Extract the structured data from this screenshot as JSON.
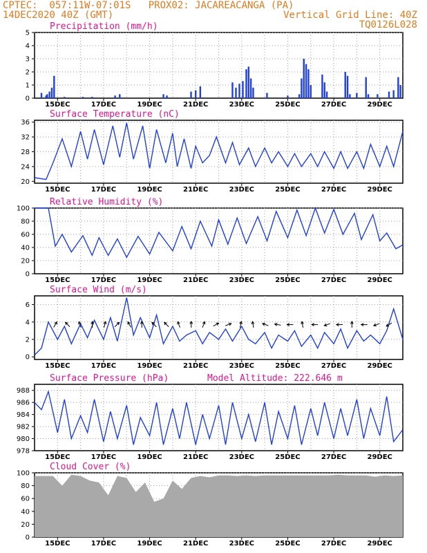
{
  "header": {
    "left1": "CPTEC:  057:11W-07:01S   PROX02: JACAREACANGA (PA)",
    "left2": "14DEC2020 40Z (GMT)",
    "right2": "Vertical Grid Line: 40Z",
    "right3": "TQ0126L028"
  },
  "colors": {
    "line": "#1f3fe0",
    "bar": "#1f3fe0",
    "cloud": "#a9a9a9",
    "title": "#e0148c",
    "header": "#e07a1f"
  },
  "x_labels": [
    "15DEC",
    "17DEC",
    "19DEC",
    "21DEC",
    "23DEC",
    "25DEC",
    "27DEC",
    "29DEC"
  ],
  "chart_data": [
    {
      "type": "bar",
      "title": "Precipitation (mm/h)",
      "ylim": [
        0,
        5
      ],
      "yticks": [
        0,
        1,
        2,
        3,
        4,
        5
      ],
      "bars": [
        [
          0.3,
          0.4
        ],
        [
          0.5,
          0.2
        ],
        [
          0.55,
          0.3
        ],
        [
          0.65,
          0.5
        ],
        [
          0.75,
          0.8
        ],
        [
          0.85,
          1.7
        ],
        [
          1.3,
          0.1
        ],
        [
          2.1,
          0.1
        ],
        [
          2.5,
          0.1
        ],
        [
          3.5,
          0.2
        ],
        [
          3.7,
          0.3
        ],
        [
          5.6,
          0.3
        ],
        [
          5.75,
          0.2
        ],
        [
          6.8,
          0.5
        ],
        [
          7.0,
          0.6
        ],
        [
          7.2,
          0.9
        ],
        [
          8.6,
          1.2
        ],
        [
          8.75,
          0.8
        ],
        [
          8.9,
          1.1
        ],
        [
          9.05,
          1.3
        ],
        [
          9.2,
          2.2
        ],
        [
          9.3,
          2.4
        ],
        [
          9.4,
          1.5
        ],
        [
          9.5,
          0.8
        ],
        [
          10.1,
          0.4
        ],
        [
          11.0,
          0.2
        ],
        [
          11.5,
          0.3
        ],
        [
          11.6,
          1.5
        ],
        [
          11.7,
          3.0
        ],
        [
          11.8,
          2.6
        ],
        [
          11.9,
          2.2
        ],
        [
          12.0,
          1.0
        ],
        [
          12.5,
          1.8
        ],
        [
          12.6,
          1.2
        ],
        [
          12.7,
          0.5
        ],
        [
          13.5,
          2.0
        ],
        [
          13.6,
          1.7
        ],
        [
          13.7,
          0.3
        ],
        [
          14.0,
          0.4
        ],
        [
          14.4,
          1.6
        ],
        [
          14.5,
          0.3
        ],
        [
          14.9,
          0.3
        ],
        [
          15.4,
          0.5
        ],
        [
          15.6,
          0.6
        ],
        [
          15.8,
          1.6
        ],
        [
          15.9,
          1.0
        ]
      ]
    },
    {
      "type": "line",
      "title": "Surface Temperature (nC)",
      "ylim": [
        19.5,
        36.5
      ],
      "yticks": [
        20,
        24,
        28,
        32,
        36
      ],
      "x": [
        0,
        0.5,
        0.8,
        1.2,
        1.6,
        2.0,
        2.3,
        2.6,
        3.0,
        3.4,
        3.7,
        4.0,
        4.3,
        4.7,
        5.0,
        5.3,
        5.7,
        6.0,
        6.2,
        6.5,
        6.8,
        7.0,
        7.3,
        7.6,
        7.9,
        8.3,
        8.6,
        8.9,
        9.3,
        9.6,
        10.0,
        10.3,
        10.6,
        11.0,
        11.3,
        11.6,
        12.0,
        12.3,
        12.6,
        13.0,
        13.3,
        13.6,
        14.0,
        14.3,
        14.6,
        15.0,
        15.3,
        15.6,
        16.0
      ],
      "values": [
        21,
        20.5,
        25,
        31.5,
        24,
        33.5,
        26,
        34,
        24.5,
        35,
        26.5,
        35.8,
        26,
        35,
        23.5,
        34,
        25,
        33,
        24,
        31.5,
        23.5,
        29.5,
        25,
        27,
        32,
        25,
        30.5,
        24.5,
        29,
        24,
        29,
        25,
        28,
        24,
        27.5,
        24,
        27.5,
        24,
        28,
        23.5,
        28,
        23.5,
        28,
        23.5,
        30,
        24,
        29.5,
        24,
        33.5
      ]
    },
    {
      "type": "line",
      "title": "Relative Humidity (%)",
      "ylim": [
        0,
        100
      ],
      "yticks": [
        0,
        20,
        40,
        60,
        80,
        100
      ],
      "x": [
        0,
        0.6,
        0.9,
        1.2,
        1.6,
        2.1,
        2.5,
        2.8,
        3.2,
        3.6,
        4.0,
        4.5,
        5.0,
        5.4,
        6.0,
        6.4,
        6.8,
        7.2,
        7.7,
        8.0,
        8.4,
        8.8,
        9.2,
        9.7,
        10.1,
        10.5,
        11.0,
        11.4,
        11.8,
        12.2,
        12.6,
        13.0,
        13.4,
        13.9,
        14.2,
        14.7,
        15.0,
        15.3,
        15.7,
        16.0
      ],
      "values": [
        100,
        100,
        42,
        60,
        33,
        58,
        28,
        55,
        28,
        53,
        25,
        57,
        30,
        63,
        35,
        72,
        38,
        80,
        42,
        82,
        45,
        85,
        46,
        87,
        50,
        95,
        55,
        97,
        58,
        100,
        62,
        98,
        60,
        92,
        52,
        90,
        50,
        62,
        38,
        44
      ]
    },
    {
      "type": "line",
      "title": "Surface Wind (m/s)",
      "ylim": [
        -0.3,
        7
      ],
      "yticks": [
        0,
        2,
        4,
        6
      ],
      "x": [
        0,
        0.3,
        0.6,
        1.0,
        1.3,
        1.6,
        2.0,
        2.3,
        2.6,
        3.0,
        3.3,
        3.6,
        4.0,
        4.3,
        4.6,
        5.0,
        5.3,
        5.6,
        6.0,
        6.3,
        6.6,
        7.0,
        7.3,
        7.6,
        8.0,
        8.3,
        8.6,
        9.0,
        9.3,
        9.6,
        10.0,
        10.3,
        10.6,
        11.0,
        11.3,
        11.6,
        12.0,
        12.3,
        12.6,
        13.0,
        13.3,
        13.6,
        14.0,
        14.3,
        14.6,
        15.0,
        15.3,
        15.6,
        16.0
      ],
      "values": [
        0.2,
        1.0,
        4.0,
        2.0,
        3.5,
        1.5,
        3.8,
        2.2,
        4.2,
        2.0,
        4.5,
        1.8,
        6.8,
        2.5,
        4.5,
        2.2,
        4.8,
        1.5,
        3.5,
        1.8,
        2.5,
        3.0,
        1.5,
        2.8,
        2.0,
        3.2,
        1.8,
        3.5,
        2.0,
        1.5,
        2.8,
        1.0,
        2.5,
        1.8,
        3.0,
        1.2,
        2.5,
        1.0,
        2.8,
        1.5,
        3.2,
        1.0,
        3.0,
        1.8,
        2.5,
        1.5,
        3.0,
        5.5,
        2.0
      ],
      "arrows_deg": [
        60,
        135,
        110,
        90,
        75,
        45,
        120,
        90,
        135,
        135,
        110,
        90,
        70,
        30,
        20,
        80,
        100,
        160,
        170,
        180,
        100,
        180,
        200,
        180,
        90,
        180,
        200,
        210
      ]
    },
    {
      "type": "line",
      "title": "Surface Pressure (hPa)",
      "annotation": "Model Altitude: 222.646 m",
      "ylim": [
        978,
        989
      ],
      "yticks": [
        978,
        980,
        982,
        984,
        986,
        988
      ],
      "x": [
        0,
        0.3,
        0.6,
        1.0,
        1.3,
        1.6,
        2.0,
        2.3,
        2.6,
        3.0,
        3.3,
        3.6,
        4.0,
        4.3,
        4.6,
        5.0,
        5.3,
        5.6,
        6.0,
        6.3,
        6.6,
        7.0,
        7.3,
        7.6,
        8.0,
        8.3,
        8.6,
        9.0,
        9.3,
        9.6,
        10.0,
        10.3,
        10.6,
        11.0,
        11.3,
        11.6,
        12.0,
        12.3,
        12.6,
        13.0,
        13.3,
        13.6,
        14.0,
        14.3,
        14.6,
        15.0,
        15.3,
        15.6,
        16.0
      ],
      "values": [
        986,
        984.8,
        987.8,
        981,
        986.5,
        980,
        983.8,
        981,
        986.5,
        979.5,
        984.5,
        980,
        985.5,
        979,
        983.5,
        980.5,
        986,
        979,
        985,
        980,
        986,
        979,
        984,
        980,
        985.5,
        979,
        986,
        980,
        984,
        979.5,
        986,
        979,
        984.5,
        980,
        985.5,
        979,
        985,
        980.5,
        986,
        980,
        985,
        980.5,
        986.5,
        980,
        985,
        980.5,
        987,
        979.5,
        981.5
      ]
    },
    {
      "type": "area",
      "title": "Cloud Cover (%)",
      "ylim": [
        0,
        100
      ],
      "yticks": [
        0,
        20,
        40,
        60,
        80,
        100
      ],
      "x": [
        0,
        0.4,
        0.8,
        1.2,
        1.6,
        2.0,
        2.4,
        2.8,
        3.2,
        3.6,
        4.0,
        4.4,
        4.8,
        5.2,
        5.6,
        6.0,
        6.4,
        6.8,
        7.2,
        7.6,
        8.0,
        8.4,
        8.8,
        9.2,
        9.6,
        10.0,
        10.4,
        10.8,
        11.2,
        11.6,
        12.0,
        12.4,
        12.8,
        13.2,
        13.6,
        14.0,
        14.4,
        14.8,
        15.2,
        15.6,
        16.0
      ],
      "values": [
        95,
        95,
        95,
        80,
        97,
        95,
        88,
        85,
        65,
        95,
        92,
        70,
        85,
        55,
        60,
        88,
        75,
        92,
        95,
        93,
        96,
        96,
        95,
        96,
        95,
        96,
        96,
        96,
        96,
        96,
        96,
        96,
        96,
        97,
        96,
        96,
        96,
        94,
        96,
        95,
        96
      ]
    }
  ]
}
